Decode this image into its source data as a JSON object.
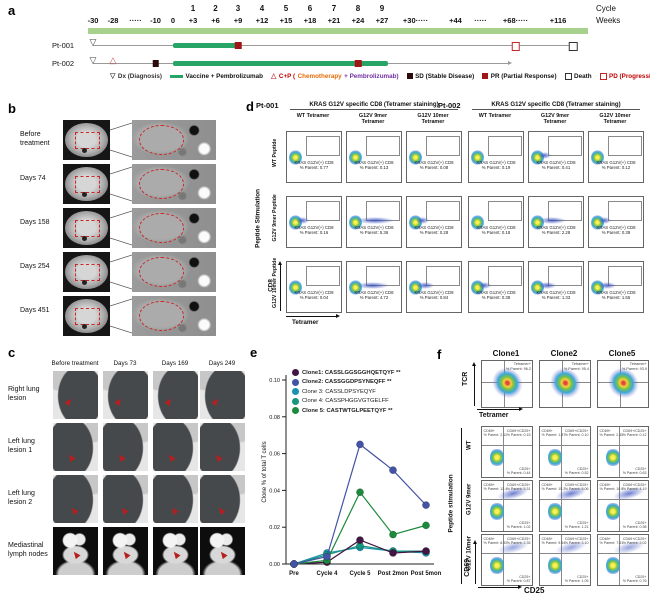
{
  "panel_a": {
    "label": "a",
    "cycle_header": "Cycle",
    "weeks_header": "Weeks",
    "cycles": [
      "1",
      "2",
      "3",
      "4",
      "5",
      "6",
      "7",
      "8",
      "9"
    ],
    "weeks": [
      "-30",
      "-28",
      "·····",
      "-10",
      "0",
      "+3",
      "+6",
      "+9",
      "+12",
      "+15",
      "+18",
      "+21",
      "+24",
      "+27",
      "+30·····",
      "+44",
      "·····",
      "+68·····",
      "+116"
    ],
    "patients": [
      {
        "label": "Pt-001"
      },
      {
        "label": "Pt-002"
      }
    ],
    "legend": {
      "dx": "Dx (Diagnosis)",
      "vaccine": "Vaccine + Pembrolizumab",
      "cp_red": "C+P (",
      "cp_orange": "Chemotherapy",
      "cp_purple": " + Pembrolizumab)",
      "sd": "SD (Stable Disease)",
      "pr": "PR (Partial Response)",
      "death": "Death",
      "pd": "PD (Progressive Disease)"
    },
    "colors": {
      "band": "#a9d18e",
      "vaccine_bar": "#27a567",
      "sd": "#2e0b0b",
      "pr": "#a01616",
      "pd_border": "#c22727",
      "death_border": "#333333",
      "cp_tri": "#c0504d",
      "orange": "#e36c0a",
      "purple": "#7030a0",
      "red": "#c00000"
    }
  },
  "panel_b": {
    "label": "b",
    "rows": [
      "Before treatment",
      "Days 74",
      "Days 158",
      "Days 254",
      "Days 451"
    ]
  },
  "panel_c": {
    "label": "c",
    "col_headers": [
      "Before treatment",
      "Days 73",
      "Days 169",
      "Days 249"
    ],
    "row_labels": [
      "Right lung lesion",
      "Left lung lesion 1",
      "Left lung lesion 2",
      "Mediastinal lymph nodes"
    ]
  },
  "panel_d": {
    "label": "d",
    "side_label": "Peptide Stimulation",
    "y_axis": "CD8",
    "x_axis": "Tetramer",
    "cell_title": "KRAS G12V(+) CD8",
    "value_prefix": "% Parent:",
    "row_labels": [
      "WT Peptide",
      "G12V 9mer Peptide",
      "G12V 10mer Peptide"
    ],
    "blocks": [
      {
        "patient": "Pt-001",
        "title": "KRAS G12V specific CD8 (Tetramer staining)",
        "col_headers": [
          "WT Tetramer",
          "G12V 9mer\nTetramer",
          "G12V 10mer\nTetramer"
        ],
        "values": [
          [
            "0.77",
            "0.13",
            "0.08"
          ],
          [
            "0.16",
            "5.36",
            "0.28"
          ],
          [
            "0.04",
            "4.72",
            "0.84"
          ]
        ]
      },
      {
        "patient": "Pt-002",
        "title": "KRAS G12V specific CD8 (Tetramer staining)",
        "col_headers": [
          "WT Tetramer",
          "G12V 9mer\nTetramer",
          "G12V 10mer\nTetramer"
        ],
        "values": [
          [
            "0.19",
            "0.41",
            "0.12"
          ],
          [
            "0.18",
            "2.28",
            "0.39"
          ],
          [
            "0.38",
            "1.33",
            "1.55"
          ]
        ]
      }
    ]
  },
  "panel_e": {
    "label": "e"
  },
  "chart_data": {
    "type": "line",
    "categories": [
      "Pre",
      "Cycle 4",
      "Cycle 5",
      "Post 2mon",
      "Post 5mon"
    ],
    "series": [
      {
        "name": "Clone1: CASSLGGSGGHQETQYF **",
        "color": "#431543",
        "bold": true,
        "values": [
          0.0,
          0.001,
          0.013,
          0.006,
          0.007
        ]
      },
      {
        "name": "Clone2: CASSGGDPSYNEQFF **",
        "color": "#4353a5",
        "bold": true,
        "values": [
          0.0,
          0.004,
          0.065,
          0.051,
          0.032
        ]
      },
      {
        "name": "Clone 3: CASSLDPSYEQYF",
        "color": "#1b93b0",
        "bold": false,
        "values": [
          0.0,
          0.006,
          0.009,
          0.007,
          0.006
        ]
      },
      {
        "name": "Clone 4: CASSPHGGVGTGELFF",
        "color": "#16947c",
        "bold": false,
        "values": [
          0.0,
          0.005,
          0.01,
          0.007,
          0.007
        ]
      },
      {
        "name": "Clone 5: CASTWTGLPEETQYF **",
        "color": "#1c8a3d",
        "bold": true,
        "values": [
          0.0,
          0.002,
          0.039,
          0.016,
          0.021
        ]
      }
    ],
    "title": "",
    "xlabel": "",
    "ylabel": "Clone % of total T cells",
    "ylim": [
      0,
      0.1
    ],
    "yticks": [
      "0.00",
      "0.02",
      "0.04",
      "0.06",
      "0.08",
      "0.10"
    ],
    "grid": false,
    "legend_position": "inside top-left"
  },
  "panel_f": {
    "label": "f",
    "col_headers": [
      "Clone1",
      "Clone2",
      "Clone5"
    ],
    "top": {
      "y_axis": "TCR",
      "x_axis": "Tetramer",
      "gate_label": "Tetramer+",
      "value_prefix": "% Parent:",
      "gate_values": [
        "96.2",
        "95.4",
        "93.9"
      ]
    },
    "side_label": "Peptide stimulation",
    "row_labels": [
      "WT",
      "G12V 9mer",
      "G12V 10mer"
    ],
    "y_axis": "CD69",
    "x_axis": "CD25",
    "quad_labels": {
      "tl": "CD69+",
      "tr": "CD69+/CD25+",
      "br": "CD25+"
    },
    "value_prefix": "% Parent:",
    "cells": [
      [
        {
          "tl": "2.11",
          "tr": "0.15",
          "br": "0.44"
        },
        {
          "tl": "1.87",
          "tr": "0.10",
          "br": "0.52"
        },
        {
          "tl": "2.45",
          "tr": "0.12",
          "br": "0.63"
        }
      ],
      [
        {
          "tl": "12.4",
          "tr": "5.31",
          "br": "1.02"
        },
        {
          "tl": "15.2",
          "tr": "8.06",
          "br": "1.21"
        },
        {
          "tl": "10.8",
          "tr": "4.19",
          "br": "0.98"
        }
      ],
      [
        {
          "tl": "8.92",
          "tr": "2.35",
          "br": "0.87"
        },
        {
          "tl": "9.64",
          "tr": "3.10",
          "br": "1.05"
        },
        {
          "tl": "7.51",
          "tr": "2.02",
          "br": "0.76"
        }
      ]
    ]
  }
}
